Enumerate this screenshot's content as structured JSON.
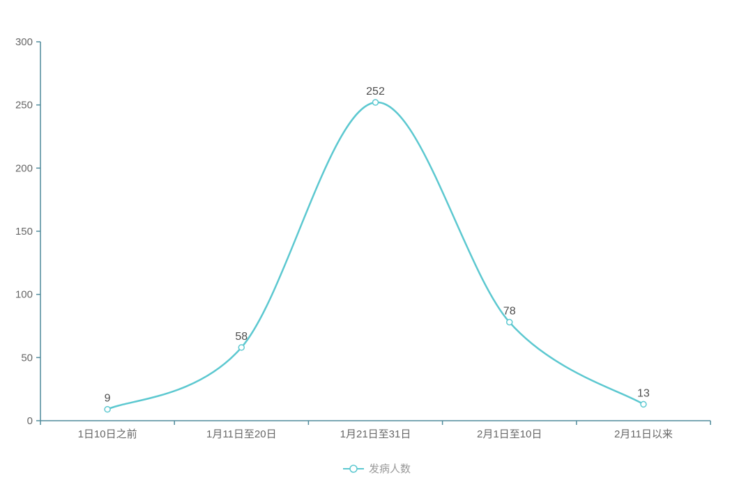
{
  "page": {
    "background": "#ffffff"
  },
  "chart_data": {
    "type": "line",
    "title": "",
    "xlabel": "",
    "ylabel": "",
    "categories": [
      "1日10日之前",
      "1月11日至20日",
      "1月21日至31日",
      "2月1日至10日",
      "2月11日以来"
    ],
    "series": [
      {
        "name": "发病人数",
        "values": [
          9,
          58,
          252,
          78,
          13
        ]
      }
    ],
    "data_labels": [
      "9",
      "58",
      "252",
      "78",
      "13"
    ],
    "ylim": [
      0,
      300
    ],
    "yticks": [
      0,
      50,
      100,
      150,
      200,
      250,
      300
    ],
    "smooth": true,
    "grid": false,
    "legend_position": "bottom-center",
    "colors": {
      "line": "#5cc8d0",
      "marker_fill": "#ffffff",
      "axis": "#4f8a9b",
      "tick_label": "#666666",
      "data_label": "#4d4d4d",
      "legend_text": "#999999",
      "background": "#ffffff"
    }
  }
}
